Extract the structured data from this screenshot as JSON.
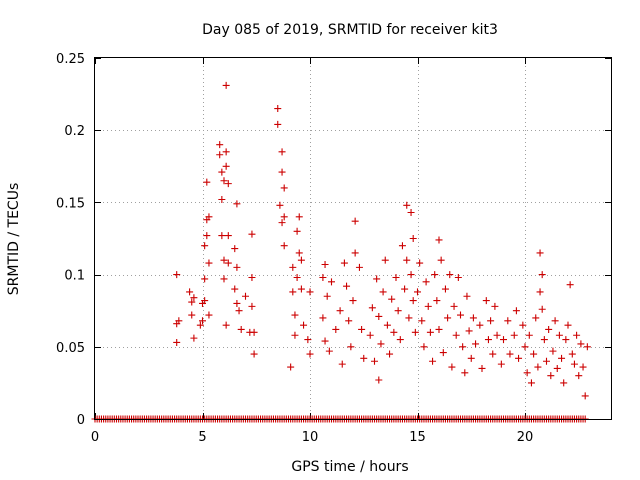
{
  "chart_data": {
    "type": "scatter",
    "title": "Day 085 of 2019, SRMTID for receiver kit3",
    "xlabel": "GPS time / hours",
    "ylabel": "SRMTID / TECUs",
    "xlim": [
      0,
      24
    ],
    "ylim": [
      0,
      0.25
    ],
    "xticks": [
      0,
      5,
      10,
      15,
      20
    ],
    "xtick_labels": [
      "0",
      "5",
      "10",
      "15",
      "20"
    ],
    "yticks": [
      0,
      0.05,
      0.1,
      0.15,
      0.2,
      0.25
    ],
    "ytick_labels": [
      "0",
      "0.05",
      "0.1",
      "0.15",
      "0.2",
      "0.25"
    ],
    "grid": true,
    "marker": "+",
    "color": "#cc0000",
    "series": [
      {
        "name": "SRMTID",
        "points": [
          [
            3.8,
            0.1
          ],
          [
            3.8,
            0.066
          ],
          [
            3.8,
            0.053
          ],
          [
            3.9,
            0.068
          ],
          [
            4.4,
            0.088
          ],
          [
            4.5,
            0.081
          ],
          [
            4.5,
            0.072
          ],
          [
            4.6,
            0.056
          ],
          [
            4.6,
            0.084
          ],
          [
            4.9,
            0.065
          ],
          [
            5.0,
            0.08
          ],
          [
            5.0,
            0.068
          ],
          [
            5.1,
            0.097
          ],
          [
            5.1,
            0.12
          ],
          [
            5.1,
            0.082
          ],
          [
            5.2,
            0.138
          ],
          [
            5.2,
            0.164
          ],
          [
            5.2,
            0.127
          ],
          [
            5.3,
            0.108
          ],
          [
            5.3,
            0.14
          ],
          [
            5.3,
            0.072
          ],
          [
            5.8,
            0.19
          ],
          [
            5.8,
            0.183
          ],
          [
            5.9,
            0.171
          ],
          [
            5.9,
            0.152
          ],
          [
            5.9,
            0.127
          ],
          [
            6.0,
            0.165
          ],
          [
            6.0,
            0.11
          ],
          [
            6.0,
            0.097
          ],
          [
            6.1,
            0.231
          ],
          [
            6.1,
            0.185
          ],
          [
            6.1,
            0.175
          ],
          [
            6.1,
            0.065
          ],
          [
            6.2,
            0.163
          ],
          [
            6.2,
            0.127
          ],
          [
            6.2,
            0.108
          ],
          [
            6.5,
            0.118
          ],
          [
            6.5,
            0.09
          ],
          [
            6.6,
            0.105
          ],
          [
            6.6,
            0.149
          ],
          [
            6.6,
            0.08
          ],
          [
            6.7,
            0.075
          ],
          [
            6.8,
            0.062
          ],
          [
            7.0,
            0.085
          ],
          [
            7.2,
            0.06
          ],
          [
            7.3,
            0.128
          ],
          [
            7.3,
            0.098
          ],
          [
            7.3,
            0.078
          ],
          [
            7.4,
            0.06
          ],
          [
            7.4,
            0.045
          ],
          [
            8.5,
            0.215
          ],
          [
            8.5,
            0.204
          ],
          [
            8.6,
            0.148
          ],
          [
            8.7,
            0.185
          ],
          [
            8.7,
            0.171
          ],
          [
            8.7,
            0.136
          ],
          [
            8.8,
            0.16
          ],
          [
            8.8,
            0.14
          ],
          [
            8.8,
            0.12
          ],
          [
            9.1,
            0.036
          ],
          [
            9.2,
            0.105
          ],
          [
            9.2,
            0.088
          ],
          [
            9.3,
            0.072
          ],
          [
            9.3,
            0.058
          ],
          [
            9.4,
            0.13
          ],
          [
            9.4,
            0.098
          ],
          [
            9.5,
            0.14
          ],
          [
            9.5,
            0.115
          ],
          [
            9.6,
            0.11
          ],
          [
            9.6,
            0.09
          ],
          [
            9.7,
            0.065
          ],
          [
            9.9,
            0.055
          ],
          [
            10.0,
            0.088
          ],
          [
            10.0,
            0.045
          ],
          [
            10.6,
            0.098
          ],
          [
            10.6,
            0.07
          ],
          [
            10.7,
            0.107
          ],
          [
            10.7,
            0.054
          ],
          [
            10.8,
            0.085
          ],
          [
            10.9,
            0.047
          ],
          [
            11.0,
            0.095
          ],
          [
            11.2,
            0.062
          ],
          [
            11.4,
            0.075
          ],
          [
            11.5,
            0.038
          ],
          [
            11.6,
            0.108
          ],
          [
            11.7,
            0.092
          ],
          [
            11.8,
            0.068
          ],
          [
            11.9,
            0.05
          ],
          [
            12.0,
            0.082
          ],
          [
            12.1,
            0.137
          ],
          [
            12.1,
            0.115
          ],
          [
            12.3,
            0.105
          ],
          [
            12.4,
            0.062
          ],
          [
            12.5,
            0.042
          ],
          [
            12.8,
            0.058
          ],
          [
            12.9,
            0.077
          ],
          [
            13.0,
            0.04
          ],
          [
            13.1,
            0.097
          ],
          [
            13.2,
            0.071
          ],
          [
            13.2,
            0.027
          ],
          [
            13.3,
            0.052
          ],
          [
            13.4,
            0.088
          ],
          [
            13.5,
            0.11
          ],
          [
            13.6,
            0.065
          ],
          [
            13.7,
            0.045
          ],
          [
            13.8,
            0.083
          ],
          [
            13.9,
            0.06
          ],
          [
            14.0,
            0.098
          ],
          [
            14.1,
            0.075
          ],
          [
            14.2,
            0.055
          ],
          [
            14.3,
            0.12
          ],
          [
            14.4,
            0.09
          ],
          [
            14.5,
            0.148
          ],
          [
            14.5,
            0.11
          ],
          [
            14.6,
            0.07
          ],
          [
            14.7,
            0.143
          ],
          [
            14.7,
            0.1
          ],
          [
            14.8,
            0.125
          ],
          [
            14.8,
            0.082
          ],
          [
            14.9,
            0.06
          ],
          [
            15.0,
            0.088
          ],
          [
            15.1,
            0.108
          ],
          [
            15.2,
            0.068
          ],
          [
            15.3,
            0.05
          ],
          [
            15.4,
            0.095
          ],
          [
            15.5,
            0.078
          ],
          [
            15.6,
            0.06
          ],
          [
            15.7,
            0.04
          ],
          [
            15.8,
            0.1
          ],
          [
            15.9,
            0.082
          ],
          [
            16.0,
            0.124
          ],
          [
            16.0,
            0.062
          ],
          [
            16.1,
            0.11
          ],
          [
            16.2,
            0.046
          ],
          [
            16.3,
            0.09
          ],
          [
            16.4,
            0.07
          ],
          [
            16.5,
            0.1
          ],
          [
            16.6,
            0.036
          ],
          [
            16.7,
            0.078
          ],
          [
            16.8,
            0.058
          ],
          [
            16.9,
            0.098
          ],
          [
            17.0,
            0.072
          ],
          [
            17.1,
            0.05
          ],
          [
            17.2,
            0.032
          ],
          [
            17.3,
            0.085
          ],
          [
            17.4,
            0.061
          ],
          [
            17.5,
            0.042
          ],
          [
            17.6,
            0.07
          ],
          [
            17.7,
            0.052
          ],
          [
            17.9,
            0.065
          ],
          [
            18.0,
            0.035
          ],
          [
            18.2,
            0.082
          ],
          [
            18.3,
            0.055
          ],
          [
            18.4,
            0.068
          ],
          [
            18.5,
            0.045
          ],
          [
            18.6,
            0.078
          ],
          [
            18.7,
            0.058
          ],
          [
            18.9,
            0.038
          ],
          [
            19.0,
            0.055
          ],
          [
            19.2,
            0.068
          ],
          [
            19.3,
            0.045
          ],
          [
            19.5,
            0.058
          ],
          [
            19.6,
            0.075
          ],
          [
            19.7,
            0.042
          ],
          [
            19.9,
            0.065
          ],
          [
            20.0,
            0.05
          ],
          [
            20.1,
            0.032
          ],
          [
            20.2,
            0.058
          ],
          [
            20.3,
            0.025
          ],
          [
            20.4,
            0.045
          ],
          [
            20.5,
            0.07
          ],
          [
            20.6,
            0.036
          ],
          [
            20.7,
            0.115
          ],
          [
            20.7,
            0.088
          ],
          [
            20.8,
            0.1
          ],
          [
            20.8,
            0.076
          ],
          [
            20.9,
            0.055
          ],
          [
            21.0,
            0.04
          ],
          [
            21.1,
            0.062
          ],
          [
            21.2,
            0.03
          ],
          [
            21.3,
            0.047
          ],
          [
            21.4,
            0.068
          ],
          [
            21.5,
            0.035
          ],
          [
            21.6,
            0.058
          ],
          [
            21.7,
            0.042
          ],
          [
            21.8,
            0.025
          ],
          [
            21.9,
            0.055
          ],
          [
            22.0,
            0.065
          ],
          [
            22.1,
            0.093
          ],
          [
            22.2,
            0.045
          ],
          [
            22.3,
            0.038
          ],
          [
            22.4,
            0.058
          ],
          [
            22.5,
            0.03
          ],
          [
            22.6,
            0.052
          ],
          [
            22.7,
            0.036
          ],
          [
            22.8,
            0.016
          ],
          [
            22.9,
            0.05
          ]
        ],
        "zero_band_start": 0.0,
        "zero_band_end": 22.8,
        "zero_band_step": 0.1
      }
    ]
  }
}
